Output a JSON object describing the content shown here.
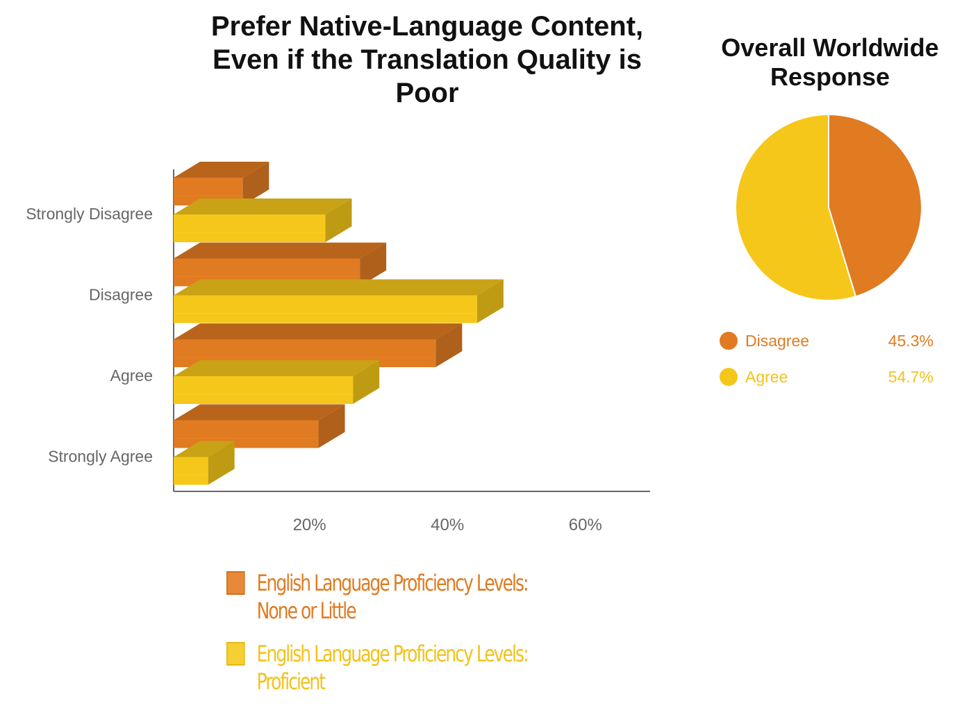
{
  "charts": {
    "main_title": "Prefer Native-Language Content, Even if the Translation Quality is Poor",
    "side_title": "Overall Worldwide Response"
  },
  "chart_data": [
    {
      "type": "bar",
      "orientation": "horizontal",
      "style": "3d",
      "title": "Prefer Native-Language Content, Even if the Translation Quality is Poor",
      "categories": [
        "Strongly Disagree",
        "Disagree",
        "Agree",
        "Strongly Agree"
      ],
      "series": [
        {
          "name": "English Language Proficiency Levels: None or Little",
          "color": "#e07b21",
          "values": [
            10,
            27,
            38,
            21
          ]
        },
        {
          "name": "English Language Proficiency Levels: Proficient",
          "color": "#f5c71a",
          "values": [
            22,
            44,
            26,
            5
          ]
        }
      ],
      "x_ticks": [
        "20%",
        "40%",
        "60%"
      ],
      "x_tick_values": [
        20,
        40,
        60
      ],
      "xlim": [
        0,
        69
      ],
      "xlabel": "",
      "ylabel": "",
      "grid": false,
      "legend_position": "bottom"
    },
    {
      "type": "pie",
      "title": "Overall Worldwide Response",
      "slices": [
        {
          "label": "Disagree",
          "value": 45.3,
          "display": "45.3%",
          "color": "#e07b21"
        },
        {
          "label": "Agree",
          "value": 54.7,
          "display": "54.7%",
          "color": "#f5c71a"
        }
      ],
      "legend_position": "bottom"
    }
  ]
}
